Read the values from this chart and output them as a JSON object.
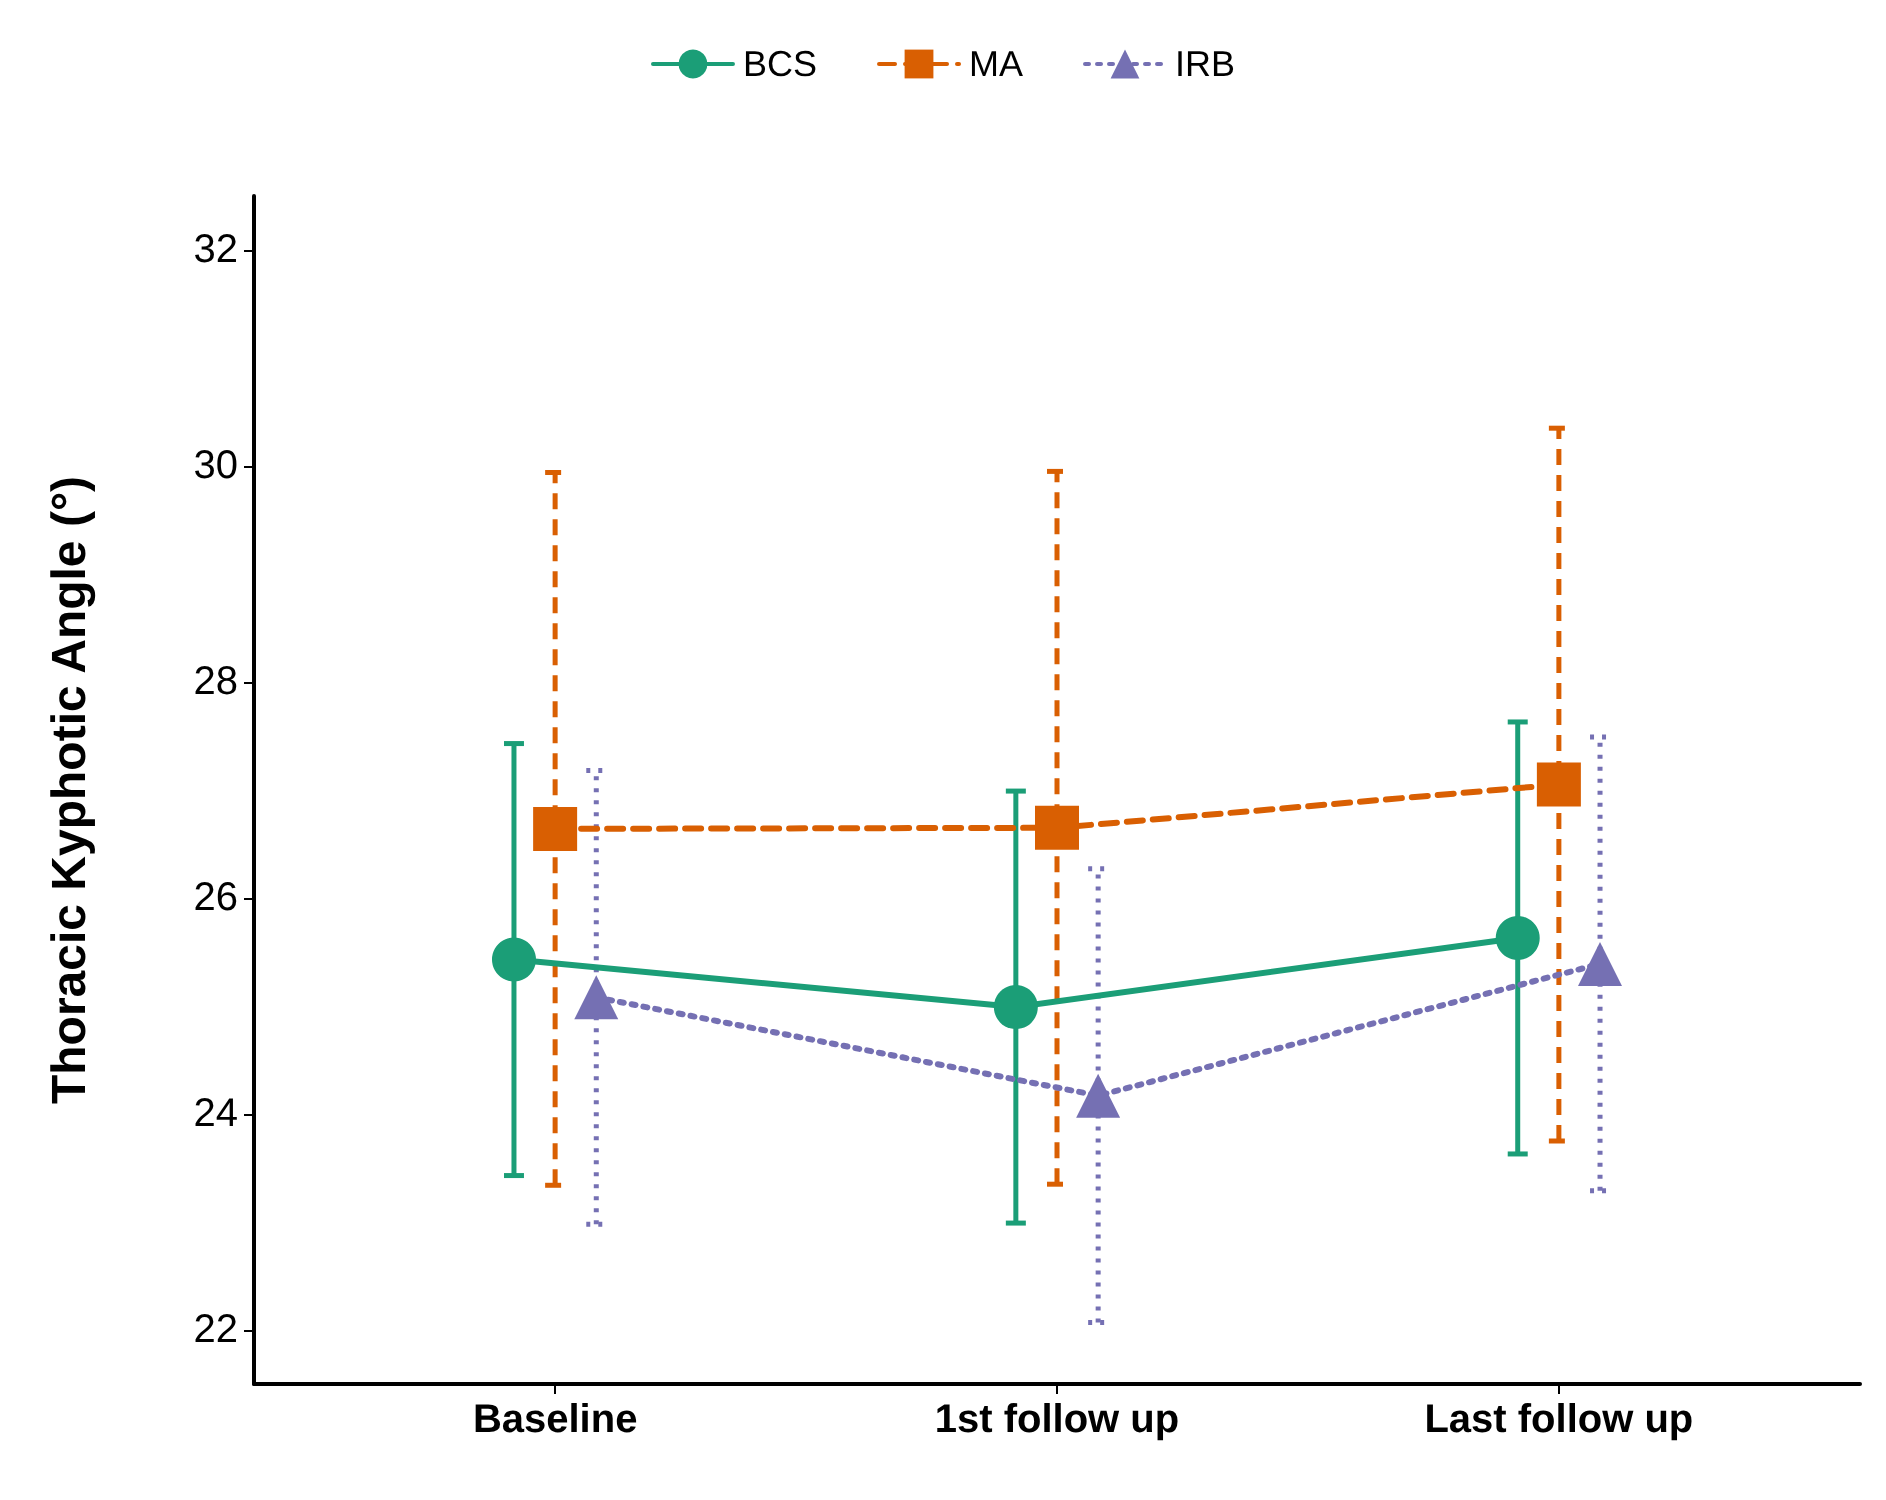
{
  "chart_data": {
    "type": "line",
    "ylabel": "Thoracic Kyphotic Angle (°)",
    "categories": [
      "Baseline",
      "1st follow up",
      "Last follow up"
    ],
    "series": [
      {
        "name": "BCS",
        "color": "#1b9e77",
        "marker": "circle",
        "line_style": "solid",
        "values": [
          25.43,
          24.99,
          25.63
        ],
        "errors": [
          2.0,
          2.0,
          2.0
        ]
      },
      {
        "name": "MA",
        "color": "#d95f02",
        "marker": "square",
        "line_style": "dashed",
        "values": [
          26.64,
          26.65,
          27.05
        ],
        "errors": [
          3.3,
          3.3,
          3.3
        ]
      },
      {
        "name": "IRB",
        "color": "#7570b3",
        "marker": "triangle",
        "line_style": "dotted",
        "values": [
          25.08,
          24.17,
          25.39
        ],
        "errors": [
          2.1,
          2.1,
          2.1
        ]
      }
    ],
    "ylim": [
      21.5,
      32.5
    ],
    "yticks": [
      22,
      24,
      26,
      28,
      30,
      32
    ],
    "grid": false,
    "legend": "top"
  }
}
